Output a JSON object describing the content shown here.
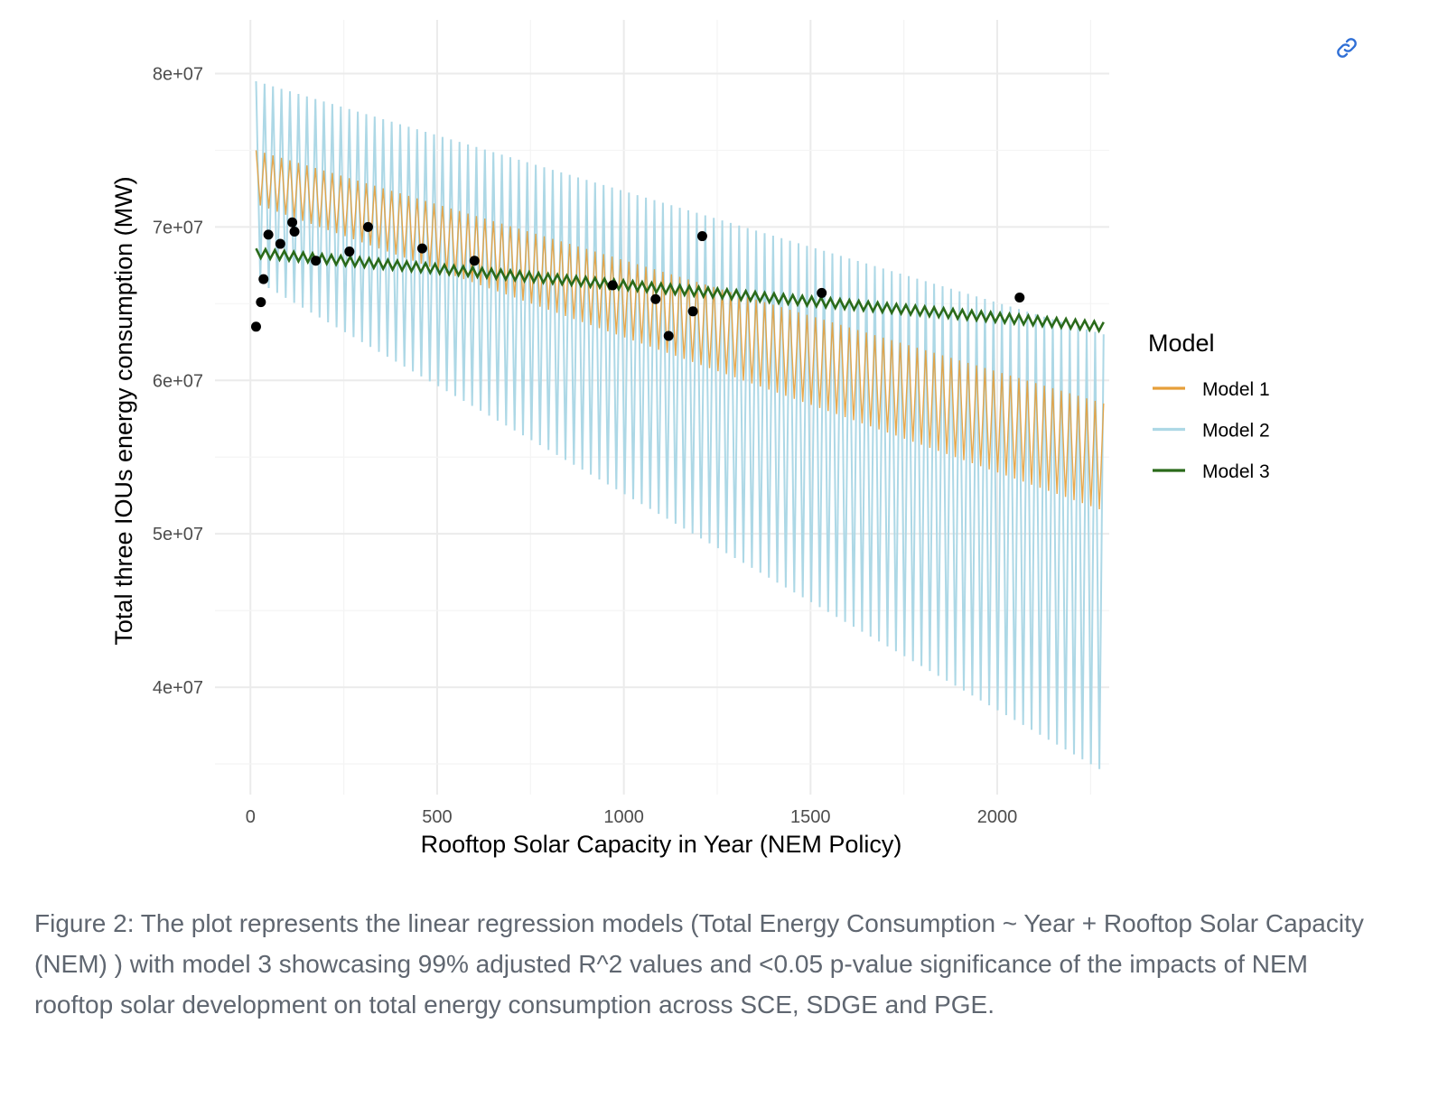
{
  "chart_data": {
    "type": "line",
    "title": "",
    "xlabel": "Rooftop Solar Capacity in Year (NEM Policy)",
    "ylabel": "Total three IOUs energy consumption (MW)",
    "xlim": [
      -95,
      2300
    ],
    "ylim": [
      33000000,
      83500000
    ],
    "x_ticks": [
      0,
      500,
      1000,
      1500,
      2000
    ],
    "x_tick_labels": [
      "0",
      "500",
      "1000",
      "1500",
      "2000"
    ],
    "y_ticks": [
      40000000,
      50000000,
      60000000,
      70000000,
      80000000
    ],
    "y_tick_labels": [
      "4e+07",
      "5e+07",
      "6e+07",
      "7e+07",
      "8e+07"
    ],
    "grid": true,
    "legend": {
      "title": "Model",
      "position": "right",
      "entries": [
        {
          "label": "Model 1",
          "color": "#E69F3A"
        },
        {
          "label": "Model 2",
          "color": "#ADD8E6"
        },
        {
          "label": "Model 3",
          "color": "#2A6A1A"
        }
      ]
    },
    "series": [
      {
        "name": "Model 1",
        "color": "#E69F3A",
        "envelope_x": [
          15,
          2285
        ],
        "upper": [
          75000000,
          58500000
        ],
        "lower": [
          71500000,
          51500000
        ]
      },
      {
        "name": "Model 2",
        "color": "#ADD8E6",
        "envelope_x": [
          15,
          2285
        ],
        "upper": [
          79500000,
          63000000
        ],
        "lower": [
          66500000,
          34500000
        ]
      },
      {
        "name": "Model 3",
        "color": "#2A6A1A",
        "envelope_x": [
          15,
          2285
        ],
        "upper": [
          68600000,
          63800000
        ],
        "lower": [
          68000000,
          63200000
        ]
      }
    ],
    "points": {
      "x": [
        15,
        28,
        35,
        48,
        80,
        112,
        118,
        175,
        265,
        315,
        460,
        600,
        970,
        1085,
        1120,
        1185,
        1210,
        1530,
        2060
      ],
      "y": [
        63500000,
        65100000,
        66600000,
        69500000,
        68900000,
        70300000,
        69700000,
        67800000,
        68400000,
        70000000,
        68600000,
        67800000,
        66200000,
        65300000,
        62900000,
        64500000,
        69400000,
        65700000,
        65400000
      ]
    }
  },
  "caption": "Figure 2: The plot represents the linear regression models (Total Energy Consumption ~ Year + Rooftop Solar Capacity (NEM) ) with model 3 showcasing 99% adjusted R^2 values and <0.05 p-value significance of the impacts of NEM rooftop solar development on total energy consumption across SCE, SDGE and PGE.",
  "link_icon": "link-icon"
}
